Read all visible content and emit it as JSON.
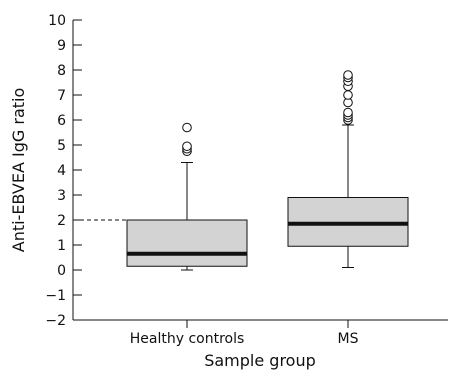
{
  "chart_data": {
    "type": "box",
    "xlabel": "Sample group",
    "ylabel": "Anti-EBVEA IgG ratio",
    "ylim": [
      -2,
      10
    ],
    "yticks": [
      -2,
      -1,
      0,
      1,
      2,
      3,
      4,
      5,
      6,
      7,
      8,
      9,
      10
    ],
    "ytick_labels": [
      "−2",
      "−1",
      "0",
      "1",
      "2",
      "3",
      "4",
      "5",
      "6",
      "7",
      "8",
      "9",
      "10"
    ],
    "reference_line": {
      "y": 2.0,
      "style": "dashed"
    },
    "colors": {
      "box_fill": "#d3d3d3",
      "stroke": "#111111"
    },
    "groups": [
      {
        "name": "Healthy controls",
        "whisker_low": 0.0,
        "q1": 0.15,
        "median": 0.65,
        "q3": 2.0,
        "whisker_high": 4.3,
        "outliers": [
          4.75,
          4.85,
          4.95,
          5.7
        ]
      },
      {
        "name": "MS",
        "whisker_low": 0.1,
        "q1": 0.95,
        "median": 1.85,
        "q3": 2.9,
        "whisker_high": 5.8,
        "outliers": [
          6.0,
          6.1,
          6.2,
          6.3,
          6.7,
          7.0,
          7.35,
          7.55,
          7.7,
          7.8
        ]
      }
    ]
  }
}
